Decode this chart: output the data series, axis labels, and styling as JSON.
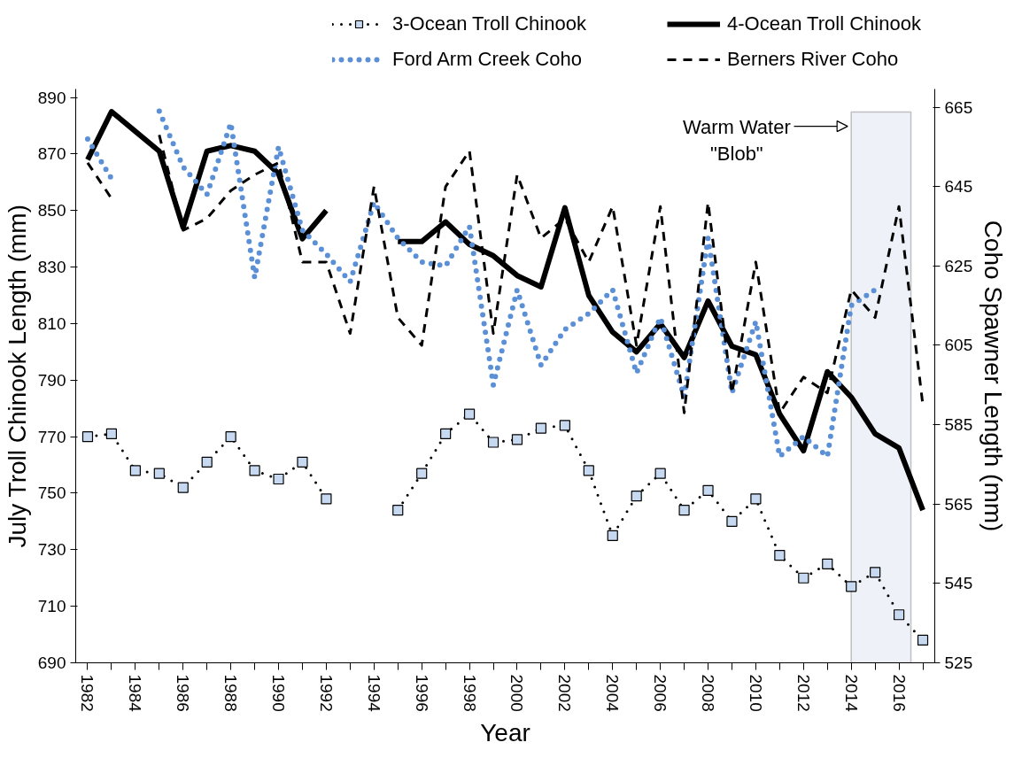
{
  "chart_data": {
    "type": "line",
    "xlabel": "Year",
    "ylabel": "July Troll Chinook Length (mm)",
    "y2label": "Coho Spawner Length (mm)",
    "x": [
      1982,
      1983,
      1984,
      1985,
      1986,
      1987,
      1988,
      1989,
      1990,
      1991,
      1992,
      1993,
      1994,
      1995,
      1996,
      1997,
      1998,
      1999,
      2000,
      2001,
      2002,
      2003,
      2004,
      2005,
      2006,
      2007,
      2008,
      2009,
      2010,
      2011,
      2012,
      2013,
      2014,
      2015,
      2016,
      2017
    ],
    "series": [
      {
        "name": "3-Ocean Troll Chinook",
        "color": "#000000",
        "line_style": "dotted",
        "marker": "square",
        "values": [
          770,
          771,
          758,
          757,
          752,
          761,
          770,
          758,
          755,
          761,
          748,
          null,
          null,
          744,
          757,
          771,
          778,
          768,
          769,
          773,
          774,
          758,
          735,
          749,
          757,
          744,
          751,
          740,
          748,
          728,
          720,
          725,
          717,
          722,
          707,
          698
        ]
      },
      {
        "name": "4-Ocean Troll Chinook",
        "color": "#000000",
        "line_style": "solid",
        "marker": "none",
        "values": [
          868,
          885,
          878,
          871,
          844,
          871,
          873,
          871,
          863,
          840,
          850,
          null,
          null,
          839,
          839,
          846,
          838,
          834,
          827,
          823,
          851,
          820,
          807,
          800,
          810,
          798,
          818,
          802,
          799,
          778,
          765,
          793,
          784,
          771,
          766,
          744
        ]
      },
      {
        "name": "Ford Arm Creek Coho",
        "color": "#5b8fd6",
        "line_style": "dotted",
        "marker": "none",
        "axis": "y2",
        "values": [
          657,
          647,
          null,
          664,
          650,
          643,
          661,
          622,
          655,
          634,
          628,
          621,
          641,
          632,
          626,
          625,
          635,
          595,
          619,
          600,
          609,
          613,
          619,
          598,
          612,
          592,
          632,
          593,
          611,
          577,
          582,
          577,
          615,
          619,
          null,
          null
        ]
      },
      {
        "name": "Berners River Coho",
        "color": "#000000",
        "line_style": "dashed",
        "marker": "none",
        "axis": "y2",
        "values": [
          651,
          642,
          null,
          658,
          634,
          637,
          644,
          648,
          651,
          626,
          626,
          608,
          645,
          612,
          605,
          645,
          654,
          608,
          648,
          632,
          637,
          626,
          640,
          605,
          640,
          588,
          641,
          593,
          626,
          588,
          597,
          593,
          619,
          612,
          640,
          590
        ]
      }
    ],
    "xlim": [
      1981.5,
      2017.5
    ],
    "xticks": [
      1982,
      {
        "value": 1983,
        "label": null
      },
      1984,
      {
        "value": 1985,
        "label": null
      },
      1986,
      {
        "value": 1987,
        "label": null
      },
      1988,
      {
        "value": 1989,
        "label": null
      },
      1990,
      {
        "value": 1991,
        "label": null
      },
      1992,
      {
        "value": 1993,
        "label": null
      },
      1994,
      {
        "value": 1995,
        "label": null
      },
      1996,
      {
        "value": 1997,
        "label": null
      },
      1998,
      {
        "value": 1999,
        "label": null
      },
      2000,
      {
        "value": 2001,
        "label": null
      },
      2002,
      {
        "value": 2003,
        "label": null
      },
      2004,
      {
        "value": 2005,
        "label": null
      },
      2006,
      {
        "value": 2007,
        "label": null
      },
      2008,
      {
        "value": 2009,
        "label": null
      },
      2010,
      {
        "value": 2011,
        "label": null
      },
      2012,
      {
        "value": 2013,
        "label": null
      },
      2014,
      {
        "value": 2015,
        "label": null
      },
      2016,
      {
        "value": 2017,
        "label": null
      }
    ],
    "ylim": [
      690,
      893
    ],
    "yticks": [
      690,
      710,
      730,
      750,
      770,
      790,
      810,
      830,
      850,
      870,
      890
    ],
    "y2lim": [
      525,
      669.6
    ],
    "y2ticks": [
      525,
      545,
      565,
      585,
      605,
      625,
      645,
      665
    ],
    "bands": [
      {
        "axis": "x",
        "from": 2014,
        "to": 2016.5,
        "label": "Warm Water\n\"Blob\"",
        "color": "#eef2f8"
      }
    ],
    "legend": "top",
    "grid": false
  }
}
